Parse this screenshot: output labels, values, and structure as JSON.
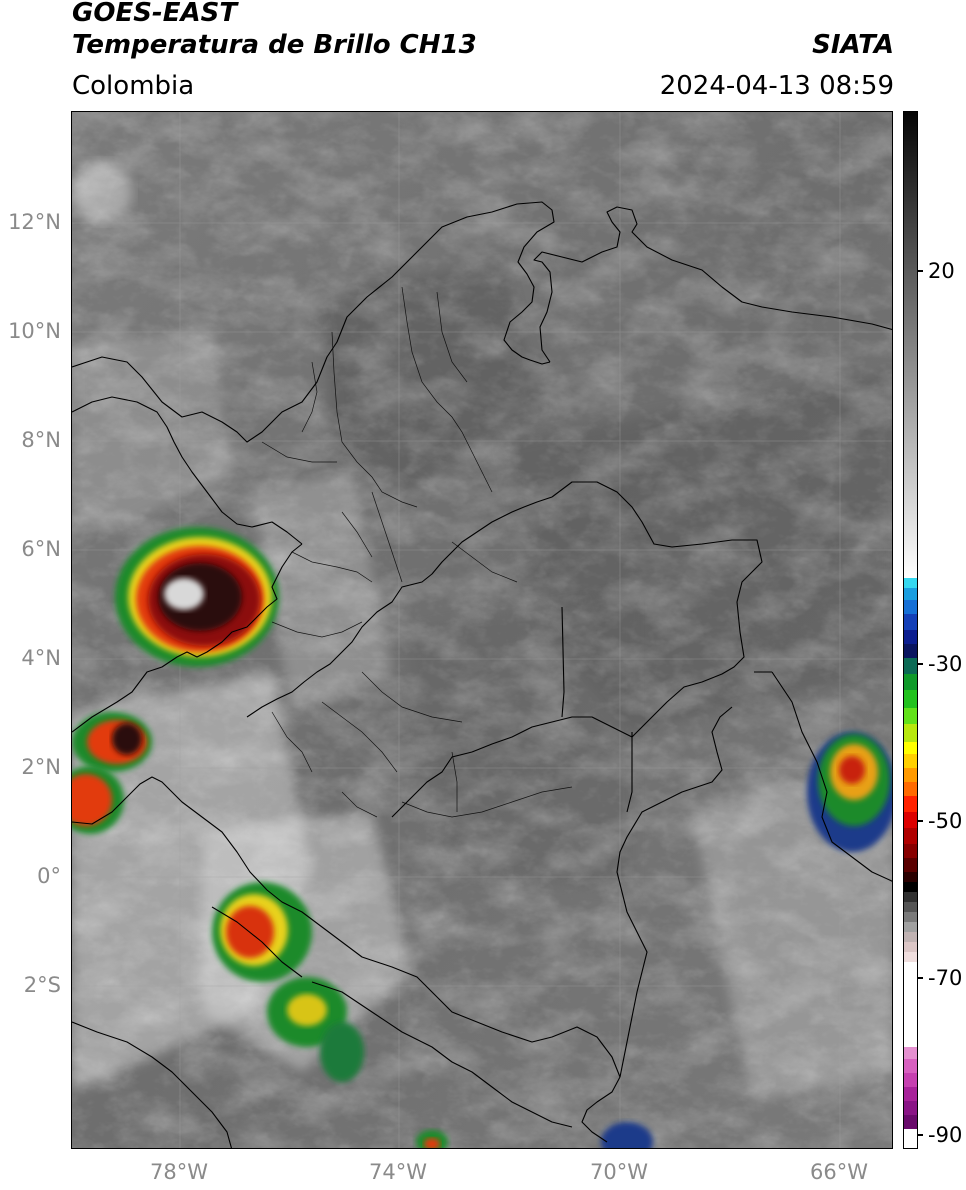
{
  "header": {
    "satellite": "GOES-EAST",
    "product": "Temperatura de Brillo CH13",
    "brand": "SIATA",
    "region": "Colombia",
    "datetime": "2024-04-13 08:59"
  },
  "axes": {
    "lat_ticks": [
      "12°N",
      "10°N",
      "8°N",
      "6°N",
      "4°N",
      "2°N",
      "0°",
      "2°S"
    ],
    "lon_ticks": [
      "78°W",
      "74°W",
      "70°W",
      "66°W"
    ]
  },
  "colorbar": {
    "ticks": [
      "20",
      "-30",
      "-50",
      "-70",
      "-90"
    ]
  }
}
